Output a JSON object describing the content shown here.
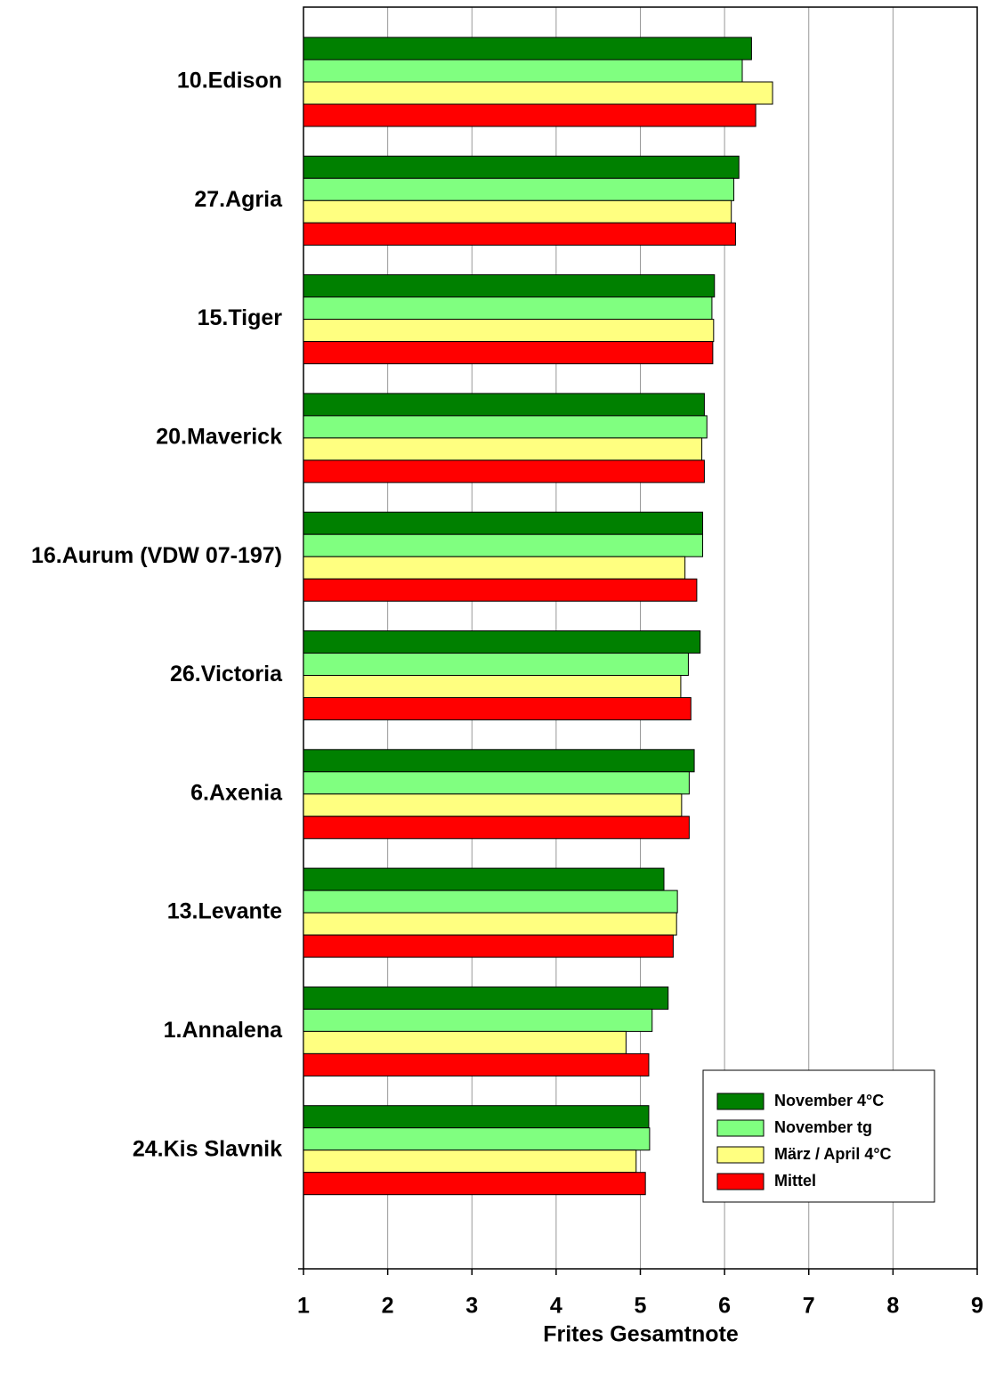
{
  "chart_data": {
    "type": "bar",
    "orientation": "horizontal",
    "x_label": "Frites Gesamtnote",
    "categories": [
      "10.Edison",
      "27.Agria",
      "15.Tiger",
      "20.Maverick",
      "16.Aurum (VDW 07-197)",
      "26.Victoria",
      "6.Axenia",
      "13.Levante",
      "1.Annalena",
      "24.Kis Slavnik"
    ],
    "series": [
      {
        "name": "November 4°C",
        "color": "#008000",
        "values": [
          6.32,
          6.17,
          5.88,
          5.76,
          5.74,
          5.71,
          5.64,
          5.28,
          5.33,
          5.1
        ]
      },
      {
        "name": "November tg",
        "color": "#80ff80",
        "values": [
          6.21,
          6.11,
          5.85,
          5.79,
          5.74,
          5.57,
          5.58,
          5.44,
          5.14,
          5.11
        ]
      },
      {
        "name": "März / April 4°C",
        "color": "#ffff80",
        "values": [
          6.57,
          6.08,
          5.87,
          5.73,
          5.53,
          5.48,
          5.49,
          5.43,
          4.83,
          4.95
        ]
      },
      {
        "name": "Mittel",
        "color": "#ff0000",
        "values": [
          6.37,
          6.13,
          5.86,
          5.76,
          5.67,
          5.6,
          5.58,
          5.39,
          5.1,
          5.06
        ]
      }
    ],
    "xlim": [
      1,
      9
    ],
    "xticks": [
      1,
      2,
      3,
      4,
      5,
      6,
      7,
      8,
      9
    ],
    "grid": true,
    "legend": "lower right"
  }
}
